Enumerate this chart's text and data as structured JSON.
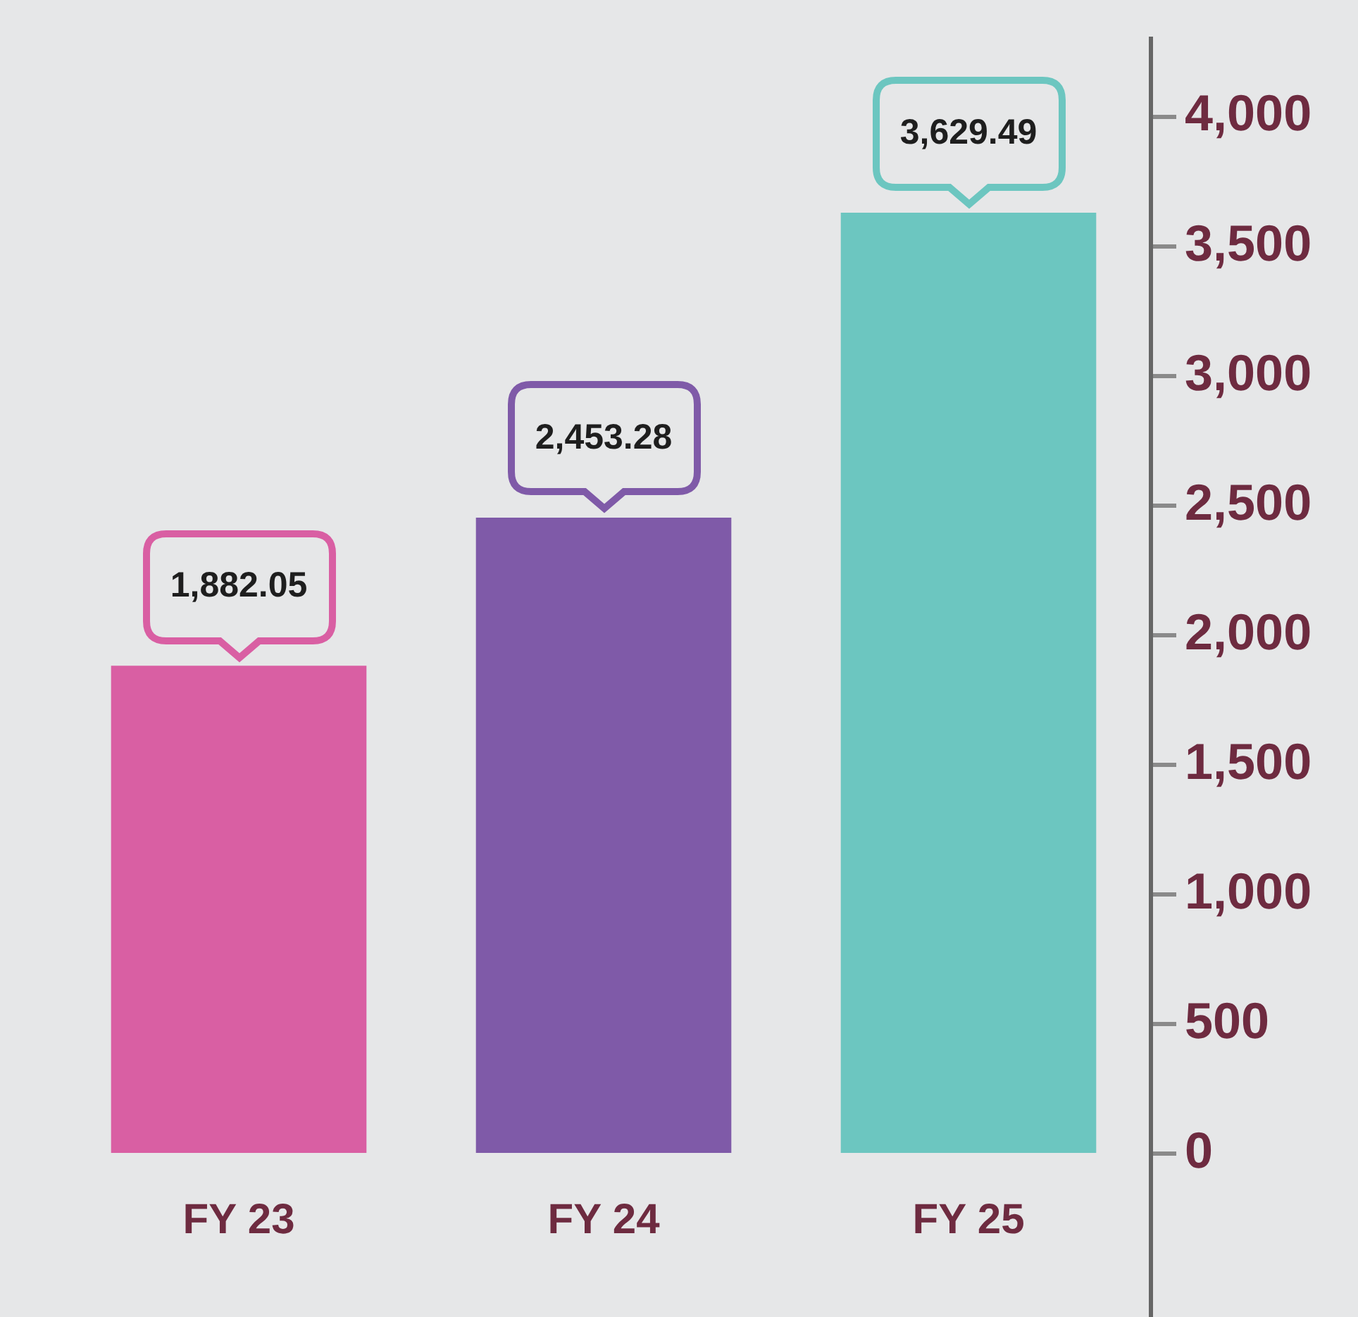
{
  "chart_data": {
    "type": "bar",
    "categories": [
      "FY 23",
      "FY 24",
      "FY 25"
    ],
    "values": [
      1882.05,
      2453.28,
      3629.49
    ],
    "colors": [
      "#d95fa3",
      "#7f5aa8",
      "#6cc6c0"
    ],
    "value_labels": [
      "1,882.05",
      "2,453.28",
      "3,629.49"
    ],
    "ylim": [
      0,
      4300
    ],
    "yticks": [
      0,
      500,
      {
        "value": 1000,
        "label": "1,000"
      },
      {
        "value": 1500,
        "label": "1,500"
      },
      {
        "value": 2000,
        "label": "2,000"
      },
      {
        "value": 2500,
        "label": "2,500"
      },
      {
        "value": 3000,
        "label": "3,000"
      },
      {
        "value": 3500,
        "label": "3,500"
      },
      {
        "value": 4000,
        "label": "4,000"
      }
    ],
    "grid": false,
    "legend": false
  }
}
